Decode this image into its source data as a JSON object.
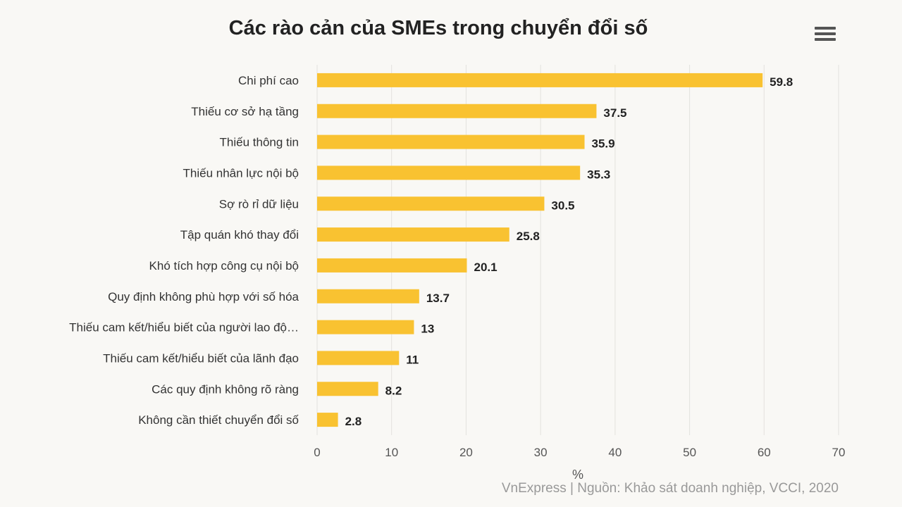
{
  "chart_data": {
    "type": "bar",
    "orientation": "horizontal",
    "title": "Các rào cản của SMEs trong chuyển đổi số",
    "categories": [
      "Chi phí cao",
      "Thiếu cơ sở hạ tầng",
      "Thiếu thông tin",
      "Thiếu nhân lực nội bộ",
      "Sợ rò rỉ dữ liệu",
      "Tập quán khó thay đổi",
      "Khó tích hợp công cụ nội bộ",
      "Quy định không phù hợp với số hóa",
      "Thiếu cam kết/hiểu biết của người lao độ…",
      "Thiếu cam kết/hiểu biết của lãnh đạo",
      "Các quy định không rõ ràng",
      "Không cần thiết chuyển đổi số"
    ],
    "values": [
      59.8,
      37.5,
      35.9,
      35.3,
      30.5,
      25.8,
      20.1,
      13.7,
      13,
      11,
      8.2,
      2.8
    ],
    "xlabel": "%",
    "ylabel": "",
    "xlim": [
      0,
      70
    ],
    "ticks": [
      0,
      10,
      20,
      30,
      40,
      50,
      60,
      70
    ],
    "grid": true,
    "color": "#f9c231"
  },
  "source_text": "VnExpress | Nguồn: Khảo sát doanh nghiệp, VCCI, 2020",
  "menu_icon": "hamburger-menu-icon"
}
